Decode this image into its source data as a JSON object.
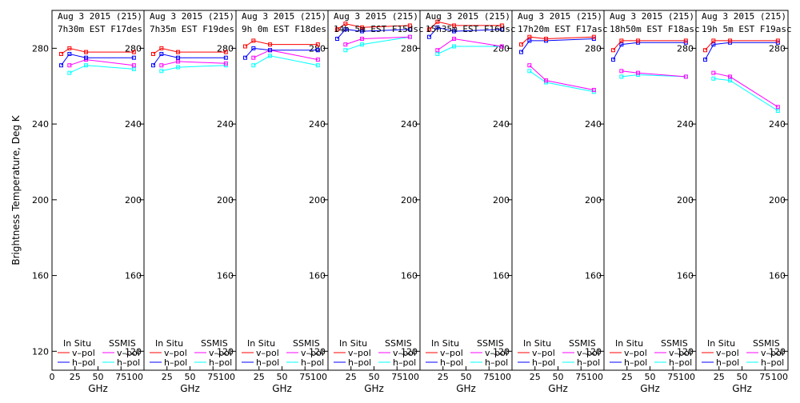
{
  "chart_data": {
    "type": "line",
    "ylabel": "Brightness Temperature, Deg K",
    "xlabel": "GHz",
    "xlim": [
      0,
      100
    ],
    "ylim": [
      110,
      300
    ],
    "x_ticks": [
      0,
      25,
      50,
      75,
      100
    ],
    "x_tick_labels": [
      "0",
      "25",
      "50",
      "75",
      "100"
    ],
    "y_ticks": [
      120,
      160,
      200,
      240,
      280
    ],
    "y_tick_labels": [
      "120",
      "160",
      "200",
      "240",
      "280"
    ],
    "legend": {
      "group_insitu": "In Situ",
      "group_ssmis": "SSMIS",
      "vpol": "v–pol",
      "hpol": "h–pol"
    },
    "colors": {
      "insitu_v": "#ff0000",
      "insitu_h": "#0000ff",
      "ssmis_v": "#ff00ff",
      "ssmis_h": "#00ffff"
    },
    "panels": [
      {
        "title_line1": "Aug 3 2015 (215)",
        "title_line2": "7h30m EST F17des",
        "series": {
          "insitu_v": {
            "x": [
              10,
              19,
              37,
              89
            ],
            "y": [
              277,
              280,
              278,
              278
            ]
          },
          "insitu_h": {
            "x": [
              10,
              19,
              37,
              89
            ],
            "y": [
              271,
              277,
              275,
              275
            ]
          },
          "ssmis_v": {
            "x": [
              19,
              37,
              89
            ],
            "y": [
              271,
              274,
              271
            ]
          },
          "ssmis_h": {
            "x": [
              19,
              37,
              89
            ],
            "y": [
              267,
              271,
              269
            ]
          }
        }
      },
      {
        "title_line1": "Aug 3 2015 (215)",
        "title_line2": "7h35m EST F19des",
        "series": {
          "insitu_v": {
            "x": [
              10,
              19,
              37,
              89
            ],
            "y": [
              277,
              280,
              278,
              278
            ]
          },
          "insitu_h": {
            "x": [
              10,
              19,
              37,
              89
            ],
            "y": [
              271,
              277,
              275,
              275
            ]
          },
          "ssmis_v": {
            "x": [
              19,
              37,
              89
            ],
            "y": [
              271,
              273,
              272
            ]
          },
          "ssmis_h": {
            "x": [
              19,
              37,
              89
            ],
            "y": [
              268,
              270,
              271
            ]
          }
        }
      },
      {
        "title_line1": "Aug 3 2015 (215)",
        "title_line2": "9h 0m EST F18des",
        "series": {
          "insitu_v": {
            "x": [
              10,
              19,
              37,
              89
            ],
            "y": [
              281,
              284,
              282,
              282
            ]
          },
          "insitu_h": {
            "x": [
              10,
              19,
              37,
              89
            ],
            "y": [
              275,
              280,
              279,
              279
            ]
          },
          "ssmis_v": {
            "x": [
              19,
              37,
              89
            ],
            "y": [
              275,
              279,
              274
            ]
          },
          "ssmis_h": {
            "x": [
              19,
              37,
              89
            ],
            "y": [
              271,
              276,
              271
            ]
          }
        }
      },
      {
        "title_line1": "Aug 3 2015 (215)",
        "title_line2": "14h 5m EST F15dsc",
        "series": {
          "insitu_v": {
            "x": [
              10,
              19,
              37,
              89
            ],
            "y": [
              290,
              293,
              291,
              292
            ]
          },
          "insitu_h": {
            "x": [
              10,
              19,
              37,
              89
            ],
            "y": [
              285,
              290,
              289,
              290
            ]
          },
          "ssmis_v": {
            "x": [
              19,
              37,
              89
            ],
            "y": [
              282,
              285,
              286
            ]
          },
          "ssmis_h": {
            "x": [
              19,
              37,
              89
            ],
            "y": [
              279,
              282,
              286
            ]
          }
        }
      },
      {
        "title_line1": "Aug 3 2015 (215)",
        "title_line2": "15h35m EST F16dsc",
        "series": {
          "insitu_v": {
            "x": [
              10,
              19,
              37,
              89
            ],
            "y": [
              290,
              294,
              292,
              292
            ]
          },
          "insitu_h": {
            "x": [
              10,
              19,
              37,
              89
            ],
            "y": [
              286,
              291,
              289,
              290
            ]
          },
          "ssmis_v": {
            "x": [
              19,
              37,
              89
            ],
            "y": [
              279,
              285,
              281
            ]
          },
          "ssmis_h": {
            "x": [
              19,
              37,
              89
            ],
            "y": [
              277,
              281,
              281
            ]
          }
        }
      },
      {
        "title_line1": "Aug 3 2015 (215)",
        "title_line2": "17h20m EST F17asc",
        "series": {
          "insitu_v": {
            "x": [
              10,
              19,
              37,
              89
            ],
            "y": [
              282,
              286,
              285,
              286
            ]
          },
          "insitu_h": {
            "x": [
              10,
              19,
              37,
              89
            ],
            "y": [
              278,
              284,
              284,
              285
            ]
          },
          "ssmis_v": {
            "x": [
              19,
              37,
              89
            ],
            "y": [
              271,
              263,
              258
            ]
          },
          "ssmis_h": {
            "x": [
              19,
              37,
              89
            ],
            "y": [
              268,
              262,
              257
            ]
          }
        }
      },
      {
        "title_line1": "Aug 3 2015 (215)",
        "title_line2": "18h50m EST F18asc",
        "series": {
          "insitu_v": {
            "x": [
              10,
              19,
              37,
              89
            ],
            "y": [
              279,
              284,
              284,
              284
            ]
          },
          "insitu_h": {
            "x": [
              10,
              19,
              37,
              89
            ],
            "y": [
              274,
              282,
              283,
              283
            ]
          },
          "ssmis_v": {
            "x": [
              19,
              37,
              89
            ],
            "y": [
              268,
              267,
              265
            ]
          },
          "ssmis_h": {
            "x": [
              19,
              37,
              89
            ],
            "y": [
              265,
              266,
              265
            ]
          }
        }
      },
      {
        "title_line1": "Aug 3 2015 (215)",
        "title_line2": "19h 5m EST F19asc",
        "series": {
          "insitu_v": {
            "x": [
              10,
              19,
              37,
              89
            ],
            "y": [
              279,
              284,
              284,
              284
            ]
          },
          "insitu_h": {
            "x": [
              10,
              19,
              37,
              89
            ],
            "y": [
              274,
              282,
              283,
              283
            ]
          },
          "ssmis_v": {
            "x": [
              19,
              37,
              89
            ],
            "y": [
              267,
              265,
              249
            ]
          },
          "ssmis_h": {
            "x": [
              19,
              37,
              89
            ],
            "y": [
              264,
              263,
              247
            ]
          }
        }
      }
    ]
  }
}
